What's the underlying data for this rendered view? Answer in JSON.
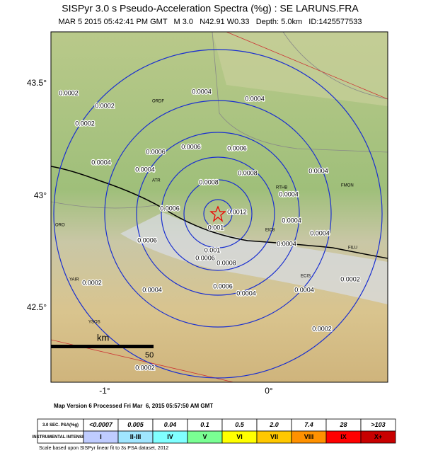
{
  "header": {
    "title": "SISPyr 3.0 s Pseudo-Acceleration Spectra (%g) : SE LARUNS.FRA",
    "subtitle": "MAR 5 2015 05:42:41 PM GMT   M 3.0   N42.91 W0.33   Depth: 5.0km   ID:1425577533"
  },
  "map": {
    "lat_labels": [
      "43.5°",
      "43°",
      "42.5°"
    ],
    "lon_labels": [
      "-1°",
      "0°"
    ],
    "scale_label": "km",
    "scale_value": "50",
    "contour_labels": [
      "0.0004",
      "0.0002",
      "0.0002",
      "0.0002",
      "0.0004",
      "0.0006",
      "0.0006",
      "0.0006",
      "0.0004",
      "0.0004",
      "0.0004",
      "0.0008",
      "0.0008",
      "0.0004",
      "0.0006",
      "0.0012",
      "0.001",
      "0.0004",
      "0.0004",
      "0.0006",
      "0.001",
      "0.0006",
      "0.0008",
      "0.0004",
      "0.0002",
      "0.0002",
      "0.0004",
      "0.0006",
      "0.0004",
      "0.0004",
      "0.0002",
      "0.0002"
    ],
    "place_labels": [
      "ORDF",
      "ATR",
      "ORO",
      "YAIR",
      "YSOS",
      "FMON",
      "RTHB",
      "EIC8",
      "FILU",
      "ECIS"
    ]
  },
  "footer": {
    "processed": "Map Version 6 Processed Fri Mar  6, 2015 05:57:50 AM GMT",
    "note": "Scale based upon SISPyr linear fit to 3s PSA dataset, 2012"
  },
  "legend": {
    "rows": [
      [
        "3.0 SEC. PSA(%g)",
        "<0.0007",
        "0.005",
        "0.04",
        "0.1",
        "0.5",
        "2.0",
        "7.4",
        "28",
        ">103"
      ],
      [
        "INSTRUMENTAL INTENSITY",
        "I",
        "II-III",
        "IV",
        "V",
        "VI",
        "VII",
        "VIII",
        "IX",
        "X+"
      ]
    ]
  }
}
